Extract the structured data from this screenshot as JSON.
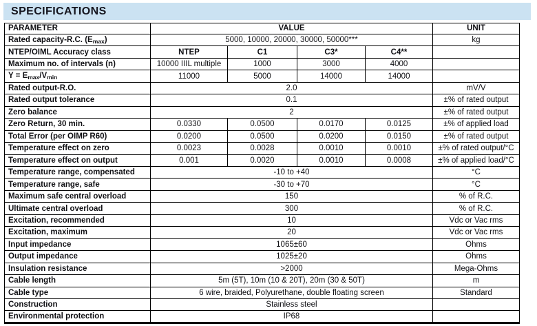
{
  "title": "SPECIFICATIONS",
  "colors": {
    "page_bg": "#ffffff",
    "title_bar_bg": "#cbe2f2",
    "title_text": "#15151e",
    "table_border": "#000000",
    "table_text": "#101014"
  },
  "table": {
    "header": {
      "parameter": "PARAMETER",
      "value": "VALUE",
      "unit": "UNIT"
    },
    "rows": [
      {
        "param": "Rated capacity-R.C. (E_{max})",
        "values": [
          "5000, 10000, 20000, 30000, 50000***"
        ],
        "unit": "kg"
      },
      {
        "param": "NTEP/OIML Accuracy class",
        "values": [
          "NTEP",
          "C1",
          "C3*",
          "C4**"
        ],
        "unit": "",
        "values_bold": true
      },
      {
        "param": "Maximum no. of intervals (n)",
        "values": [
          "10000 IIIL multiple",
          "1000",
          "3000",
          "4000"
        ],
        "unit": ""
      },
      {
        "param": "Y = E_{max}/V_{min}",
        "values": [
          "11000",
          "5000",
          "14000",
          "14000"
        ],
        "unit": ""
      },
      {
        "param": "Rated output-R.O.",
        "values": [
          "2.0"
        ],
        "unit": "mV/V"
      },
      {
        "param": "Rated output tolerance",
        "values": [
          "0.1"
        ],
        "unit": "±% of rated output"
      },
      {
        "param": "Zero balance",
        "values": [
          "2"
        ],
        "unit": "±% of rated output"
      },
      {
        "param": "Zero Return, 30 min.",
        "values": [
          "0.0330",
          "0.0500",
          "0.0170",
          "0.0125"
        ],
        "unit": "±% of applied load"
      },
      {
        "param": "Total Error (per OIMP R60)",
        "values": [
          "0.0200",
          "0.0500",
          "0.0200",
          "0.0150"
        ],
        "unit": "±% of rated output"
      },
      {
        "param": "Temperature effect on zero",
        "values": [
          "0.0023",
          "0.0028",
          "0.0010",
          "0.0010"
        ],
        "unit": "±% of rated output/°C"
      },
      {
        "param": "Temperature effect on output",
        "values": [
          "0.001",
          "0.0020",
          "0.0010",
          "0.0008"
        ],
        "unit": "±% of applied load/°C"
      },
      {
        "param": "Temperature range, compensated",
        "values": [
          "-10 to +40"
        ],
        "unit": "°C"
      },
      {
        "param": "Temperature range, safe",
        "values": [
          "-30 to +70"
        ],
        "unit": "°C"
      },
      {
        "param": "Maximum safe central overload",
        "values": [
          "150"
        ],
        "unit": "% of R.C."
      },
      {
        "param": "Ultimate central overload",
        "values": [
          "300"
        ],
        "unit": "% of R.C."
      },
      {
        "param": "Excitation, recommended",
        "values": [
          "10"
        ],
        "unit": "Vdc or Vac rms"
      },
      {
        "param": "Excitation, maximum",
        "values": [
          "20"
        ],
        "unit": "Vdc or Vac rms"
      },
      {
        "param": "Input impedance",
        "values": [
          "1065±60"
        ],
        "unit": "Ohms"
      },
      {
        "param": "Output impedance",
        "values": [
          "1025±20"
        ],
        "unit": "Ohms"
      },
      {
        "param": "Insulation resistance",
        "values": [
          ">2000"
        ],
        "unit": "Mega-Ohms"
      },
      {
        "param": "Cable length",
        "values": [
          "5m (5T), 10m (10 & 20T), 20m (30 & 50T)"
        ],
        "unit": "m"
      },
      {
        "param": "Cable type",
        "values": [
          "6 wire, braided, Polyurethane, double floating screen"
        ],
        "unit": "Standard"
      },
      {
        "param": "Construction",
        "values": [
          "Stainless steel"
        ],
        "unit": ""
      },
      {
        "param": "Environmental protection",
        "values": [
          "IP68"
        ],
        "unit": ""
      }
    ]
  }
}
